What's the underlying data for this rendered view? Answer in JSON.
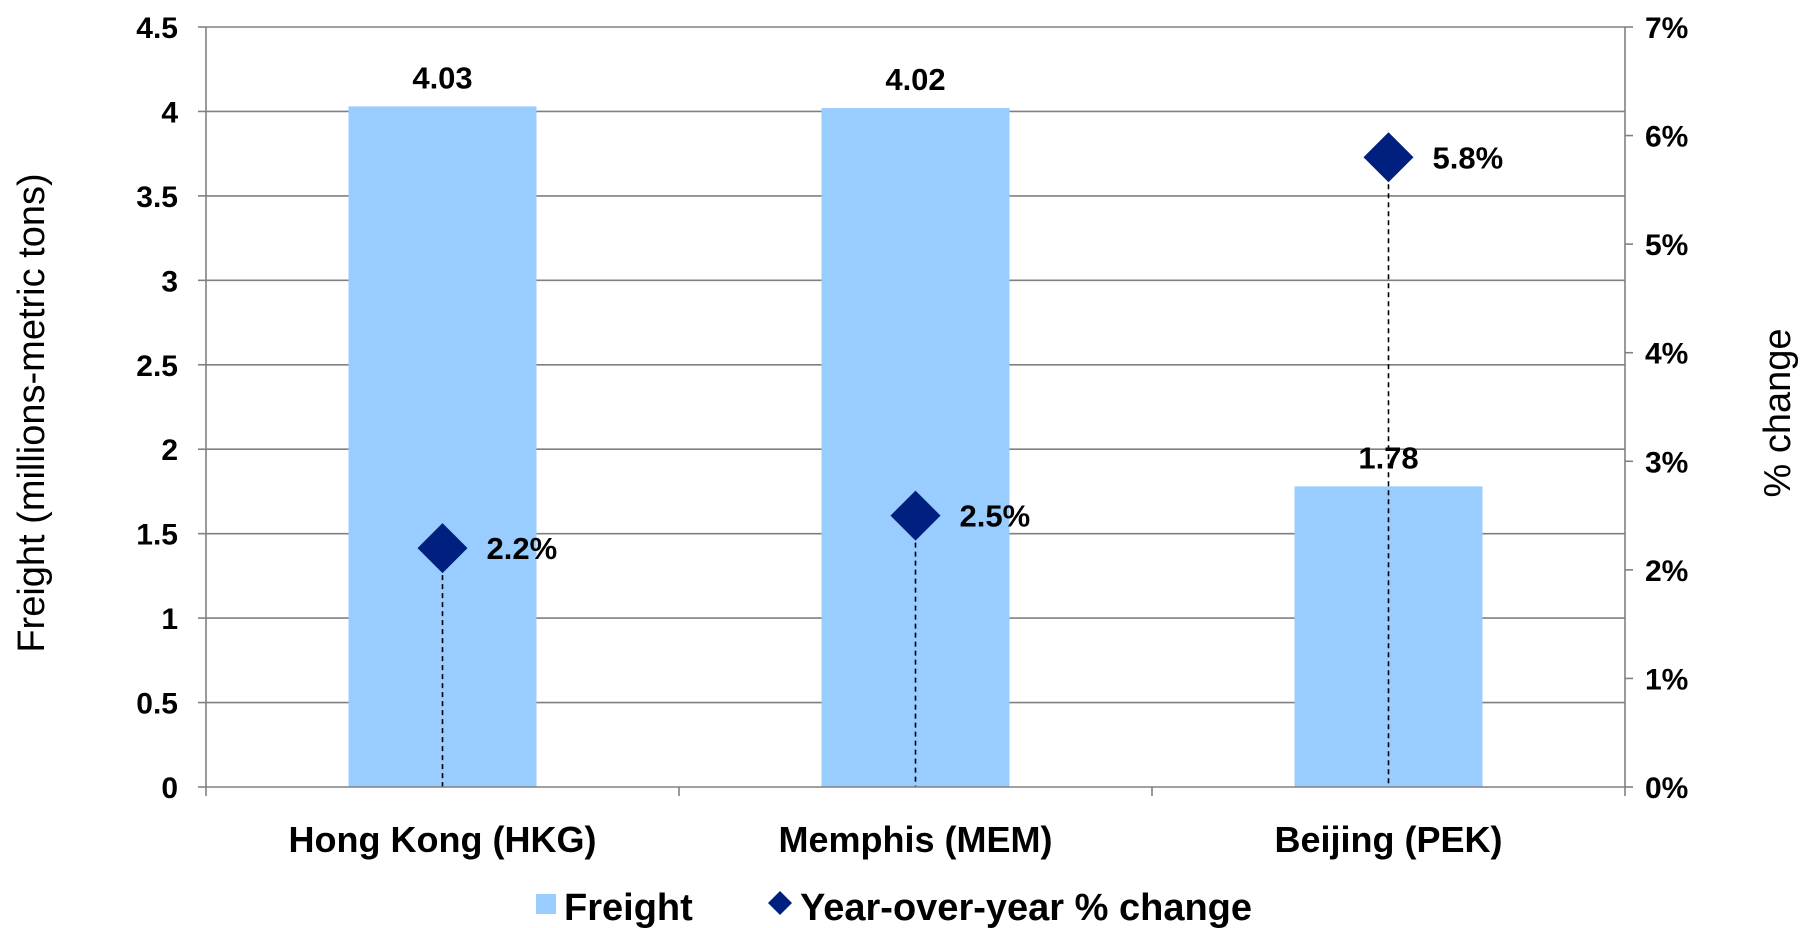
{
  "chart_data": {
    "type": "bar",
    "categories": [
      "Hong Kong (HKG)",
      "Memphis (MEM)",
      "Beijing (PEK)"
    ],
    "series": [
      {
        "name": "Freight",
        "type": "bar",
        "axis": "left",
        "values": [
          4.03,
          4.02,
          1.78
        ],
        "labels": [
          "4.03",
          "4.02",
          "1.78"
        ]
      },
      {
        "name": "Year-over-year % change",
        "type": "scatter",
        "marker": "diamond",
        "axis": "right",
        "values": [
          2.2,
          2.5,
          5.8
        ],
        "labels": [
          "2.2%",
          "2.5%",
          "5.8%"
        ]
      }
    ],
    "ylabel": "Freight (millions-metric tons)",
    "y2label": "% change",
    "ylim": [
      0,
      4.5
    ],
    "y2lim": [
      0,
      7
    ],
    "yticks": [
      "0",
      "0.5",
      "1",
      "1.5",
      "2",
      "2.5",
      "3",
      "3.5",
      "4",
      "4.5"
    ],
    "y2ticks": [
      "0%",
      "1%",
      "2%",
      "3%",
      "4%",
      "5%",
      "6%",
      "7%"
    ],
    "grid": true,
    "legend": "bottom",
    "colors": {
      "bar": "#99CCFF",
      "marker": "#002080",
      "grid": "#808080",
      "axis": "#808080",
      "dropline": "#000000"
    }
  }
}
